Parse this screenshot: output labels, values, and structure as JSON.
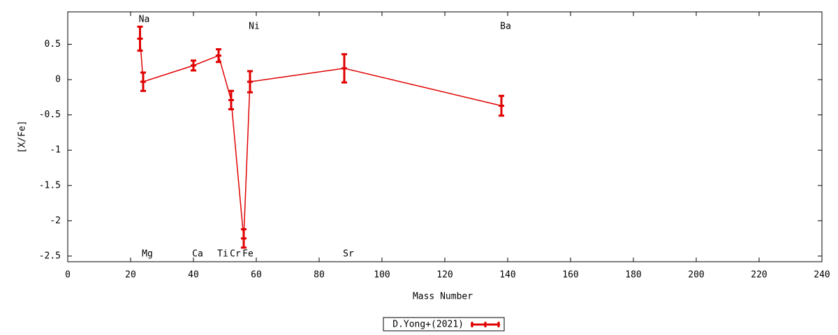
{
  "chart_data": {
    "type": "line",
    "xlabel": "Mass Number",
    "ylabel": "[X/Fe]",
    "xlim": [
      0,
      240
    ],
    "ylim": [
      -2.58,
      0.96
    ],
    "xticks": [
      0,
      20,
      40,
      60,
      80,
      100,
      120,
      140,
      160,
      180,
      200,
      220,
      240
    ],
    "yticks": [
      -2.5,
      -2,
      -1.5,
      -1,
      -0.5,
      0,
      0.5
    ],
    "grid": false,
    "legend": "bottom",
    "element_labels": [
      "Na",
      "Mg",
      "Ca",
      "Ti",
      "Cr",
      "Fe",
      "Ni",
      "Sr",
      "Ba"
    ],
    "label_positions": [
      "top",
      "bottom",
      "bottom",
      "bottom",
      "bottom",
      "bottom",
      "top",
      "bottom",
      "top"
    ],
    "x": [
      23,
      24,
      40,
      48,
      52,
      56,
      58,
      88,
      138
    ],
    "series": [
      {
        "name": "D.Yong+(2021)",
        "color": "#e00000",
        "values": [
          0.58,
          -0.03,
          0.2,
          0.34,
          -0.29,
          -2.25,
          -0.03,
          0.16,
          -0.37
        ],
        "errors": [
          0.17,
          0.13,
          0.07,
          0.09,
          0.13,
          0.13,
          0.15,
          0.2,
          0.14
        ]
      }
    ]
  }
}
